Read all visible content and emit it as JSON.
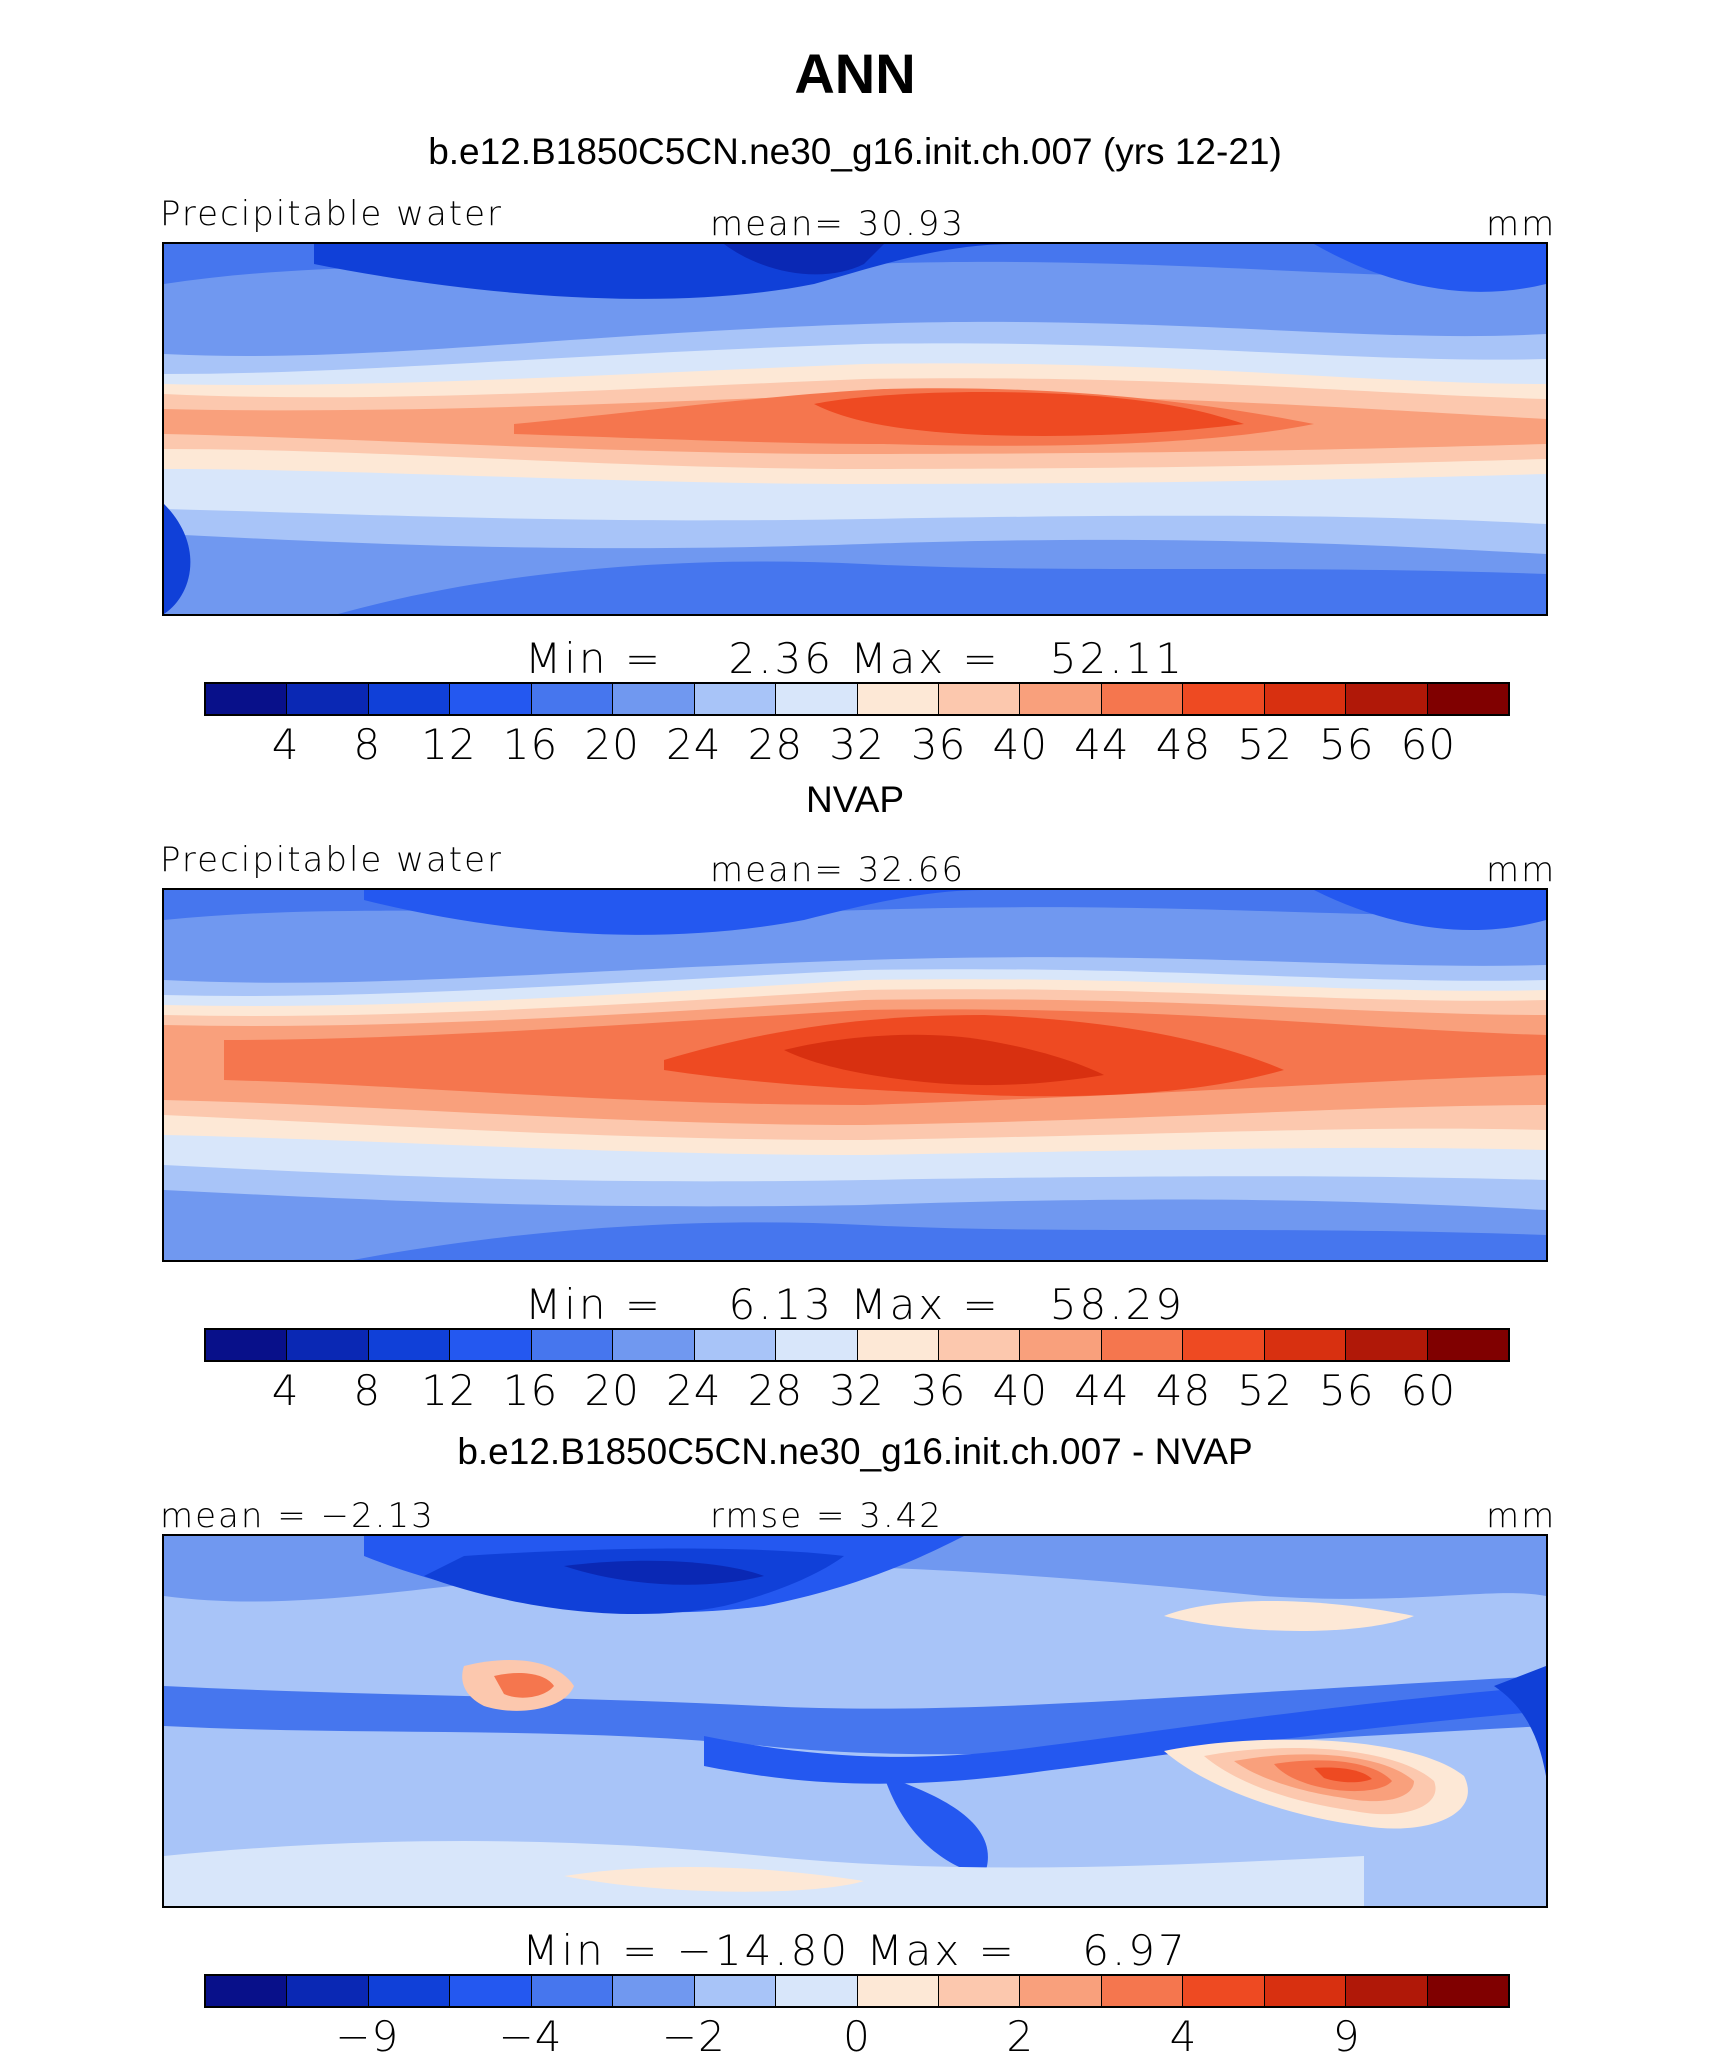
{
  "figure": {
    "title": "ANN"
  },
  "colormap": [
    "#08108a",
    "#0a28b4",
    "#1040d8",
    "#2458f0",
    "#4676ee",
    "#7098f0",
    "#a8c4f8",
    "#d8e6fa",
    "#fde8d6",
    "#fcc8ae",
    "#f9a07c",
    "#f5764e",
    "#ee4a22",
    "#d83010",
    "#b01808",
    "#800000"
  ],
  "panels": [
    {
      "title": "b.e12.B1850C5CN.ne30_g16.init.ch.007 (yrs 12-21)",
      "left_label": "Precipitable water",
      "center_label": "mean=   30.93",
      "right_label": "mm",
      "minmax": "Min =    2.36 Max =   52.11",
      "min": 2.36,
      "max": 52.11,
      "mean": 30.93,
      "units": "mm",
      "levels": [
        4,
        8,
        12,
        16,
        20,
        24,
        28,
        32,
        36,
        40,
        44,
        48,
        52,
        56,
        60
      ],
      "tick_labels": [
        "4",
        "8",
        "12",
        "16",
        "20",
        "24",
        "28",
        "32",
        "36",
        "40",
        "44",
        "48",
        "52",
        "56",
        "60"
      ]
    },
    {
      "title": "NVAP",
      "left_label": "Precipitable water",
      "center_label": "mean=   32.66",
      "right_label": "mm",
      "minmax": "Min =    6.13 Max =   58.29",
      "min": 6.13,
      "max": 58.29,
      "mean": 32.66,
      "units": "mm",
      "levels": [
        4,
        8,
        12,
        16,
        20,
        24,
        28,
        32,
        36,
        40,
        44,
        48,
        52,
        56,
        60
      ],
      "tick_labels": [
        "4",
        "8",
        "12",
        "16",
        "20",
        "24",
        "28",
        "32",
        "36",
        "40",
        "44",
        "48",
        "52",
        "56",
        "60"
      ]
    },
    {
      "title": "b.e12.B1850C5CN.ne30_g16.init.ch.007 - NVAP",
      "left_label": "mean =  −2.13",
      "center_label": "rmse =    3.42",
      "right_label": "mm",
      "minmax": "Min = −14.80 Max =    6.97",
      "min": -14.8,
      "max": 6.97,
      "mean": -2.13,
      "rmse": 3.42,
      "units": "mm",
      "tick_labels": [
        "−9",
        "−4",
        "−2",
        "0",
        "2",
        "4",
        "9"
      ]
    }
  ]
}
